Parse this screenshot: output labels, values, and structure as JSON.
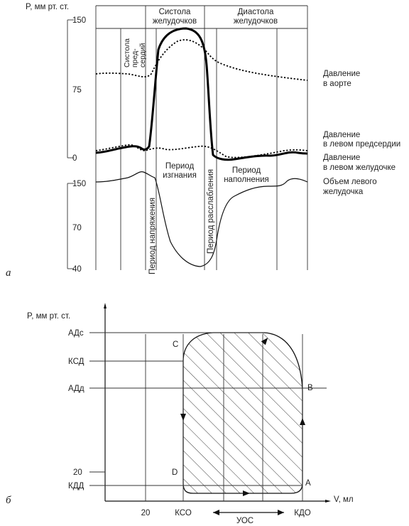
{
  "panel_a": {
    "label": "а",
    "y_axis_label": "P, мм рт. ст.",
    "pressure_ticks": [
      "150",
      "75",
      "0"
    ],
    "volume_ticks": [
      "150",
      "70",
      "40"
    ],
    "header": {
      "systole_line1": "Систола",
      "systole_line2": "желудочков",
      "diastole_line1": "Диастола",
      "diastole_line2": "желудочков"
    },
    "atrial_systole": {
      "line1": "Систола",
      "line2": "пред-",
      "line3": "сердий"
    },
    "periods": {
      "tension": "Период напряжения",
      "ejection_line1": "Период",
      "ejection_line2": "изгнания",
      "relaxation": "Период расслабления",
      "filling_line1": "Период",
      "filling_line2": "наполнения"
    },
    "legend": {
      "aorta_line1": "Давление",
      "aorta_line2": "в аорте",
      "atrium_line1": "Давление",
      "atrium_line2": "в левом предсердии",
      "ventricle_line1": "Давление",
      "ventricle_line2": "в левом желудочке",
      "volume_line1": "Объем левого",
      "volume_line2": "желудочка"
    }
  },
  "panel_b": {
    "label": "б",
    "y_axis_label": "P, мм рт. ст.",
    "x_axis_label": "V, мл",
    "y_ticks": [
      "АДс",
      "КСД",
      "АДд",
      "20",
      "КДД"
    ],
    "x_ticks": [
      "20",
      "КСО",
      "КДО"
    ],
    "stroke_volume": "УОС",
    "points": {
      "A": "A",
      "B": "B",
      "C": "C",
      "D": "D"
    }
  }
}
